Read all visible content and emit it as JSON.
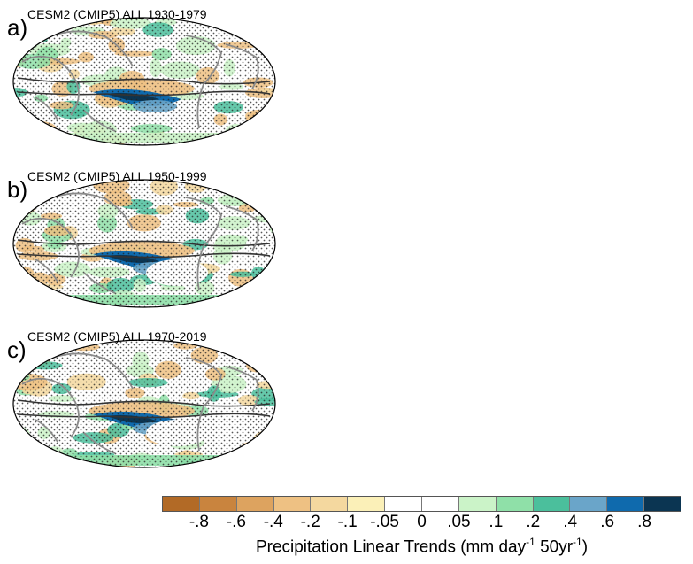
{
  "panels": [
    {
      "label": "a)",
      "title": "CESM2 (CMIP5) ALL 1930-1979"
    },
    {
      "label": "b)",
      "title": "CESM2 (CMIP5) ALL 1950-1999"
    },
    {
      "label": "c)",
      "title": "CESM2 (CMIP5) ALL 1970-2019"
    }
  ],
  "colorbar": {
    "colors": [
      "#b26a26",
      "#c9843e",
      "#dda35f",
      "#eec183",
      "#f4d89f",
      "#fbf0b8",
      "#ffffff",
      "#ffffff",
      "#cbf3c8",
      "#8fe0a8",
      "#4bbf9c",
      "#6aa5c9",
      "#0f6aad",
      "#0b3552"
    ],
    "ticks": [
      "-.8",
      "-.6",
      "-.4",
      "-.2",
      "-.1",
      "-.05",
      "0",
      ".05",
      ".1",
      ".2",
      ".4",
      ".6",
      ".8"
    ],
    "title_main": "Precipitation Linear Trends (mm day",
    "title_sup1": "-1",
    "title_mid": " 50yr",
    "title_sup2": "-1",
    "title_end": ")"
  },
  "map_colors": {
    "dry_strong": "#c9843e",
    "dry": "#eec183",
    "dry_light": "#f4d89f",
    "wet_light": "#cbf3c8",
    "wet": "#8fe0a8",
    "wet_mid": "#4bbf9c",
    "wet_blue": "#6aa5c9",
    "wet_dark": "#0f6aad",
    "wet_darkest": "#0b3552",
    "coast": "#8a8a8a",
    "contour": "#333333"
  }
}
